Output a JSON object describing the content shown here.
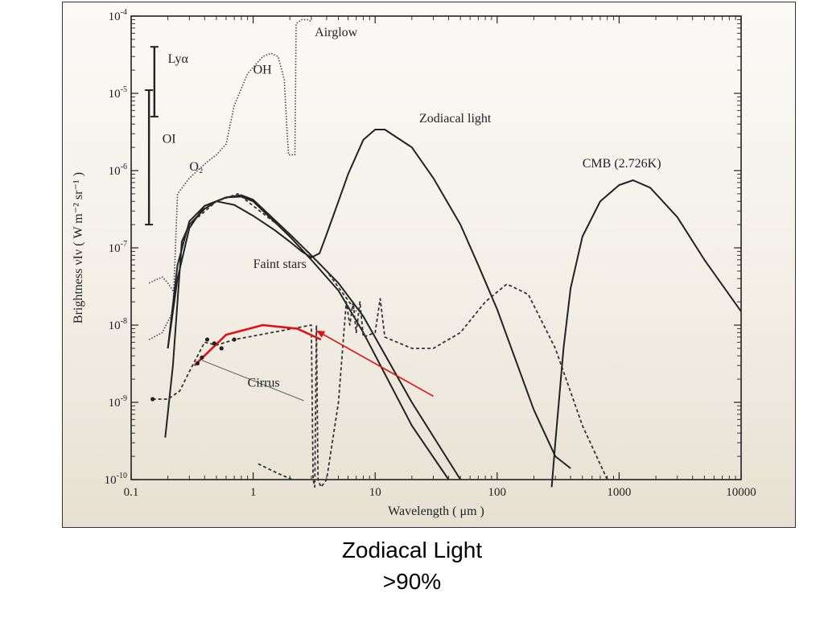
{
  "caption": {
    "title": "Zodiacal Light",
    "subtitle": ">90%"
  },
  "colors": {
    "ink": "#222222",
    "highlight": "#e01010",
    "background": "#f3efe7"
  },
  "chart_data": {
    "type": "line",
    "title": "",
    "xlabel": "Wavelength ( μm )",
    "ylabel": "Brightness νIν ( W m⁻² sr⁻¹ )",
    "x_scale": "log",
    "y_scale": "log",
    "xlim": [
      0.1,
      10000
    ],
    "ylim": [
      1e-10,
      0.0001
    ],
    "x_ticks": [
      {
        "value": 0.1,
        "label": "0.1"
      },
      {
        "value": 1,
        "label": "1"
      },
      {
        "value": 10,
        "label": "10"
      },
      {
        "value": 100,
        "label": "100"
      },
      {
        "value": 1000,
        "label": "1000"
      },
      {
        "value": 10000,
        "label": "10000"
      }
    ],
    "y_ticks": [
      {
        "value": 1e-10,
        "base": "10",
        "exp": "-10"
      },
      {
        "value": 1e-09,
        "base": "10",
        "exp": "-9"
      },
      {
        "value": 1e-08,
        "base": "10",
        "exp": "-8"
      },
      {
        "value": 1e-07,
        "base": "10",
        "exp": "-7"
      },
      {
        "value": 1e-06,
        "base": "10",
        "exp": "-6"
      },
      {
        "value": 1e-05,
        "base": "10",
        "exp": "-5"
      },
      {
        "value": 0.0001,
        "base": "10",
        "exp": "-4"
      }
    ],
    "series": [
      {
        "key": "airglow_blue",
        "style": "dotted",
        "points": [
          [
            0.14,
            3.5e-08
          ],
          [
            0.18,
            4.2e-08
          ],
          [
            0.2,
            3.5e-08
          ],
          [
            0.22,
            2.8e-08
          ],
          [
            0.235,
            3.5e-08
          ]
        ]
      },
      {
        "key": "airglow",
        "style": "dotted",
        "points": [
          [
            0.14,
            6.5e-09
          ],
          [
            0.18,
            8e-09
          ],
          [
            0.22,
            1.5e-08
          ],
          [
            0.24,
            5e-07
          ],
          [
            0.3,
            8e-07
          ],
          [
            0.42,
            1.3e-06
          ],
          [
            0.5,
            1.6e-06
          ],
          [
            0.6,
            2.2e-06
          ],
          [
            0.7,
            7e-06
          ],
          [
            0.9,
            1.8e-05
          ],
          [
            1.2,
            3e-05
          ],
          [
            1.4,
            3.3e-05
          ],
          [
            1.6,
            3e-05
          ],
          [
            1.8,
            1.5e-05
          ],
          [
            1.9,
            3e-06
          ],
          [
            1.95,
            1.6e-06
          ],
          [
            2.2,
            1.6e-06
          ],
          [
            2.25,
            8e-05
          ],
          [
            2.5,
            9e-05
          ],
          [
            2.8,
            9e-05
          ],
          [
            3.0,
            8.5e-05
          ]
        ]
      },
      {
        "key": "zodiacal",
        "style": "solid",
        "points": [
          [
            0.19,
            3.5e-10
          ],
          [
            0.22,
            3e-09
          ],
          [
            0.26,
            1.2e-07
          ],
          [
            0.3,
            2e-07
          ],
          [
            0.4,
            3.2e-07
          ],
          [
            0.5,
            4e-07
          ],
          [
            0.7,
            3.6e-07
          ],
          [
            1,
            2.6e-07
          ],
          [
            1.5,
            1.7e-07
          ],
          [
            2,
            1.2e-07
          ],
          [
            2.5,
            9e-08
          ],
          [
            3,
            7.5e-08
          ],
          [
            3.5,
            8.5e-08
          ],
          [
            4,
            1.5e-07
          ],
          [
            5,
            4e-07
          ],
          [
            6,
            9e-07
          ],
          [
            8,
            2.5e-06
          ],
          [
            10,
            3.4e-06
          ],
          [
            12,
            3.4e-06
          ],
          [
            20,
            2e-06
          ],
          [
            30,
            8e-07
          ],
          [
            50,
            2e-07
          ],
          [
            70,
            6e-08
          ],
          [
            100,
            1.6e-08
          ],
          [
            200,
            8e-10
          ],
          [
            300,
            2e-10
          ],
          [
            400,
            1.4e-10
          ]
        ]
      },
      {
        "key": "faint_stars_a",
        "style": "solid",
        "points": [
          [
            0.2,
            5e-09
          ],
          [
            0.24,
            6e-08
          ],
          [
            0.3,
            2.2e-07
          ],
          [
            0.4,
            3.5e-07
          ],
          [
            0.6,
            4.5e-07
          ],
          [
            0.8,
            4.6e-07
          ],
          [
            1,
            4e-07
          ],
          [
            2,
            1.4e-07
          ],
          [
            3,
            7e-08
          ],
          [
            5,
            2.8e-08
          ],
          [
            8,
            8e-09
          ],
          [
            20,
            5e-10
          ],
          [
            40,
            1e-10
          ]
        ]
      },
      {
        "key": "faint_stars_b",
        "style": "solid",
        "points": [
          [
            0.2,
            5e-09
          ],
          [
            0.24,
            4e-08
          ],
          [
            0.3,
            1.8e-07
          ],
          [
            0.4,
            3.5e-07
          ],
          [
            0.6,
            4.5e-07
          ],
          [
            0.8,
            4.8e-07
          ],
          [
            1,
            4.2e-07
          ],
          [
            2,
            1.5e-07
          ],
          [
            3,
            8e-08
          ],
          [
            5,
            3.5e-08
          ],
          [
            8,
            1.3e-08
          ],
          [
            20,
            1e-09
          ],
          [
            50,
            1e-10
          ]
        ]
      },
      {
        "key": "faint_stars_dashed",
        "style": "dashed",
        "points": [
          [
            0.3,
            2e-07
          ],
          [
            0.5,
            4e-07
          ],
          [
            0.75,
            5e-07
          ],
          [
            1,
            3.5e-07
          ],
          [
            2,
            1.5e-07
          ],
          [
            4,
            5e-08
          ],
          [
            7,
            1.5e-08
          ]
        ]
      },
      {
        "key": "cirrus",
        "style": "dashed",
        "points": [
          [
            0.15,
            1.1e-09
          ],
          [
            0.2,
            1.1e-09
          ],
          [
            0.25,
            1.4e-09
          ],
          [
            0.3,
            2.5e-09
          ],
          [
            0.35,
            4e-09
          ],
          [
            0.4,
            6e-09
          ],
          [
            0.5,
            5.5e-09
          ],
          [
            0.6,
            6e-09
          ],
          [
            0.7,
            6.5e-09
          ],
          [
            3.0,
            1e-08
          ],
          [
            3.1,
            1e-10
          ],
          [
            3.2,
            8e-11
          ],
          [
            3.3,
            1e-08
          ],
          [
            3.4,
            1e-10
          ],
          [
            3.6,
            8e-11
          ],
          [
            4,
            1e-10
          ],
          [
            5,
            1e-09
          ],
          [
            5.8,
            2e-08
          ],
          [
            6.2,
            1e-08
          ],
          [
            6.6,
            2e-08
          ],
          [
            7,
            8e-09
          ],
          [
            7.5,
            2e-08
          ],
          [
            8,
            7e-09
          ],
          [
            10,
            8e-09
          ],
          [
            11,
            2.2e-08
          ],
          [
            12,
            7e-09
          ],
          [
            20,
            5e-09
          ],
          [
            30,
            5e-09
          ],
          [
            50,
            8e-09
          ],
          [
            80,
            2e-08
          ],
          [
            120,
            3.4e-08
          ],
          [
            180,
            2.5e-08
          ],
          [
            300,
            5e-09
          ],
          [
            500,
            5e-10
          ],
          [
            800,
            1e-10
          ]
        ]
      },
      {
        "key": "scattered",
        "style": "dashed",
        "points": [
          [
            1.1,
            1.6e-10
          ],
          [
            1.6,
            1.2e-10
          ],
          [
            2.1,
            1e-10
          ]
        ]
      },
      {
        "key": "cmb",
        "style": "solid",
        "points": [
          [
            280,
            8e-11
          ],
          [
            300,
            3e-10
          ],
          [
            350,
            5e-09
          ],
          [
            400,
            3e-08
          ],
          [
            500,
            1.4e-07
          ],
          [
            700,
            4e-07
          ],
          [
            1000,
            6.5e-07
          ],
          [
            1300,
            7.5e-07
          ],
          [
            1800,
            6e-07
          ],
          [
            3000,
            2.5e-07
          ],
          [
            5000,
            7e-08
          ],
          [
            10000,
            1.5e-08
          ]
        ]
      },
      {
        "key": "optical_estimate",
        "style": "highlight",
        "points": [
          [
            0.33,
            3e-09
          ],
          [
            0.6,
            7.5e-09
          ],
          [
            1.2,
            1e-08
          ],
          [
            2.3,
            9e-09
          ],
          [
            3.6,
            6.5e-09
          ]
        ]
      }
    ],
    "markers": [
      {
        "x": 0.15,
        "y": 1.1e-09
      },
      {
        "x": 0.35,
        "y": 3.2e-09
      },
      {
        "x": 0.38,
        "y": 3.8e-09
      },
      {
        "x": 0.42,
        "y": 6.5e-09
      },
      {
        "x": 0.48,
        "y": 5.8e-09
      },
      {
        "x": 0.55,
        "y": 5e-09
      },
      {
        "x": 0.7,
        "y": 6.5e-09
      }
    ],
    "error_bars": [
      {
        "label": "Lyα",
        "x": 0.155,
        "low": 5e-06,
        "high": 4e-05
      },
      {
        "label": "OI",
        "x": 0.14,
        "low": 2e-07,
        "high": 1.1e-05
      }
    ],
    "arrows": [
      {
        "from": [
          30,
          1.2e-09
        ],
        "to": [
          3.3,
          8.5e-09
        ]
      }
    ],
    "annotations": [
      {
        "text": "Airglow",
        "x": 3.2,
        "y": 5.5e-05,
        "anchor": "start"
      },
      {
        "text": "OH",
        "x": 1.0,
        "y": 1.8e-05,
        "anchor": "start"
      },
      {
        "text": "Lyα",
        "x": 0.2,
        "y": 2.5e-05,
        "anchor": "start"
      },
      {
        "text": "OI",
        "x": 0.18,
        "y": 2.3e-06,
        "anchor": "start"
      },
      {
        "text": "O₂",
        "x": 0.3,
        "y": 1e-06,
        "anchor": "start"
      },
      {
        "text": "Zodiacal light",
        "x": 23,
        "y": 4.2e-06,
        "anchor": "start"
      },
      {
        "text": "CMB (2.726K)",
        "x": 500,
        "y": 1.1e-06,
        "anchor": "start"
      },
      {
        "text": "Faint stars",
        "x": 1.0,
        "y": 5.5e-08,
        "anchor": "start"
      },
      {
        "text": "Cirrus",
        "x": 0.9,
        "y": 1.6e-09,
        "anchor": "start"
      }
    ],
    "grid": false,
    "legend": "none"
  }
}
